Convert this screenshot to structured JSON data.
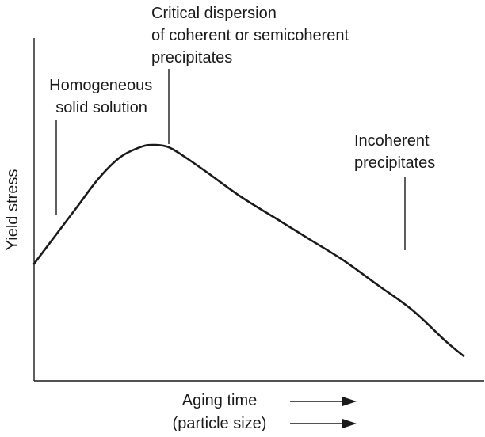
{
  "chart_data": {
    "type": "line",
    "title": "",
    "xlabel": [
      "Aging time",
      "(particle size)"
    ],
    "ylabel": "Yield stress",
    "x_ticks": [],
    "y_ticks": [],
    "grid": false,
    "series": [
      {
        "x": [
          0,
          0.05,
          0.1,
          0.15,
          0.2,
          0.25,
          0.28,
          0.31,
          0.34,
          0.4,
          0.48,
          0.56,
          0.64,
          0.72,
          0.8,
          0.88,
          0.96,
          1.0
        ],
        "y": [
          0.33,
          0.41,
          0.49,
          0.57,
          0.63,
          0.66,
          0.665,
          0.66,
          0.64,
          0.59,
          0.52,
          0.46,
          0.4,
          0.34,
          0.27,
          0.2,
          0.11,
          0.07
        ]
      }
    ],
    "annotations": [
      {
        "lines": [
          "Homogeneous",
          "solid solution"
        ]
      },
      {
        "lines": [
          "Critical dispersion",
          "of coherent or semicoherent",
          "precipitates"
        ]
      },
      {
        "lines": [
          "Incoherent",
          "precipitates"
        ]
      }
    ],
    "direction_arrows": 2,
    "colors": {
      "line": "#1a1a1a",
      "axes": "#1a1a1a"
    }
  }
}
